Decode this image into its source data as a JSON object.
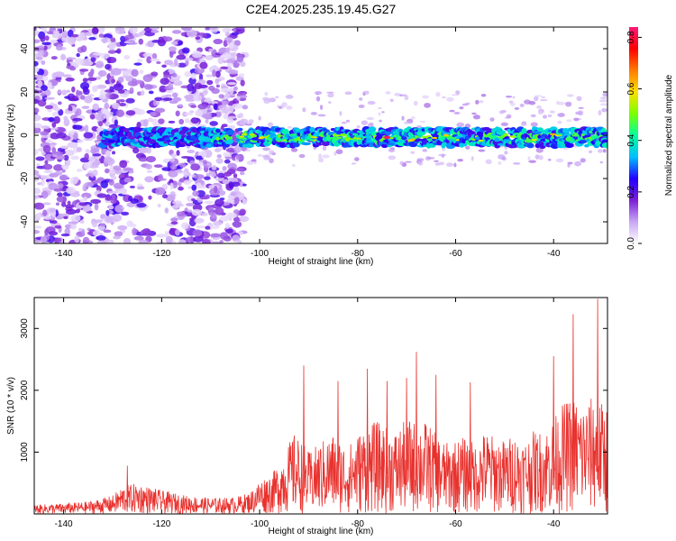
{
  "title": "C2E4.2025.235.19.45.G27",
  "colors": {
    "snr_line": "#e8322e",
    "axis": "#000000"
  },
  "chart_data": [
    {
      "type": "heatmap",
      "xlabel": "Height of straight line (km)",
      "ylabel": "Frequency (Hz)",
      "xlim": [
        -146,
        -29
      ],
      "ylim": [
        -50,
        50
      ],
      "x_ticks": [
        -140,
        -120,
        -100,
        -80,
        -60,
        -40
      ],
      "y_ticks": [
        -40,
        -20,
        0,
        20,
        40
      ],
      "grid": false,
      "colorbar": {
        "label": "Normalized spectral amplitude",
        "range": [
          0,
          0.84
        ],
        "ticks": [
          "0.0",
          "0.2",
          "0.4",
          "0.6",
          "0.8"
        ],
        "colormap": [
          "#ffffff",
          "#c9a6f5",
          "#7a1fd6",
          "#2200ff",
          "#00bfff",
          "#00ff9c",
          "#7cff00",
          "#ffe000",
          "#ff7a00",
          "#ff0000",
          "#ff1a7a"
        ]
      },
      "band": {
        "center_hz": -1,
        "half_width_hz": 4,
        "start_km": -132,
        "gap_km": [
          -106,
          -104
        ],
        "peak": {
          "x": -74,
          "y": -1,
          "value": 0.82
        }
      },
      "noise_region_km": [
        -146,
        -103
      ]
    },
    {
      "type": "line",
      "xlabel": "Height of straight line (km)",
      "ylabel": "SNR (10 * v/v)",
      "xlim": [
        -146,
        -29
      ],
      "ylim": [
        0,
        3500
      ],
      "x_ticks": [
        -140,
        -120,
        -100,
        -80,
        -60,
        -40
      ],
      "y_ticks": [
        1000,
        2000,
        3000
      ],
      "grid": false,
      "envelope": {
        "x": [
          -146,
          -140,
          -135,
          -130,
          -128,
          -125,
          -120,
          -115,
          -110,
          -105,
          -102,
          -100,
          -97,
          -95,
          -93,
          -91,
          -90,
          -87,
          -85,
          -82,
          -80,
          -78,
          -76,
          -74,
          -72,
          -70,
          -68,
          -66,
          -64,
          -62,
          -60,
          -58,
          -56,
          -54,
          -52,
          -50,
          -48,
          -46,
          -44,
          -42,
          -40,
          -38,
          -36,
          -34,
          -32,
          -30
        ],
        "y": [
          150,
          170,
          200,
          300,
          450,
          500,
          380,
          300,
          260,
          270,
          350,
          550,
          700,
          1000,
          1300,
          1150,
          1000,
          1200,
          1300,
          1100,
          1300,
          1450,
          1500,
          1400,
          1350,
          1550,
          1500,
          1500,
          1300,
          1150,
          1200,
          1250,
          1150,
          1350,
          1250,
          1200,
          1300,
          1200,
          1350,
          1350,
          1550,
          1800,
          1900,
          1800,
          1900,
          1800
        ]
      },
      "peaks": [
        {
          "x": -127,
          "y": 780
        },
        {
          "x": -91,
          "y": 2400
        },
        {
          "x": -84,
          "y": 2150
        },
        {
          "x": -78,
          "y": 2350
        },
        {
          "x": -74,
          "y": 2150
        },
        {
          "x": -70,
          "y": 2200
        },
        {
          "x": -68,
          "y": 2620
        },
        {
          "x": -64,
          "y": 2250
        },
        {
          "x": -57,
          "y": 2130
        },
        {
          "x": -40,
          "y": 2550
        },
        {
          "x": -36,
          "y": 3230
        },
        {
          "x": -31,
          "y": 3480
        }
      ]
    }
  ]
}
